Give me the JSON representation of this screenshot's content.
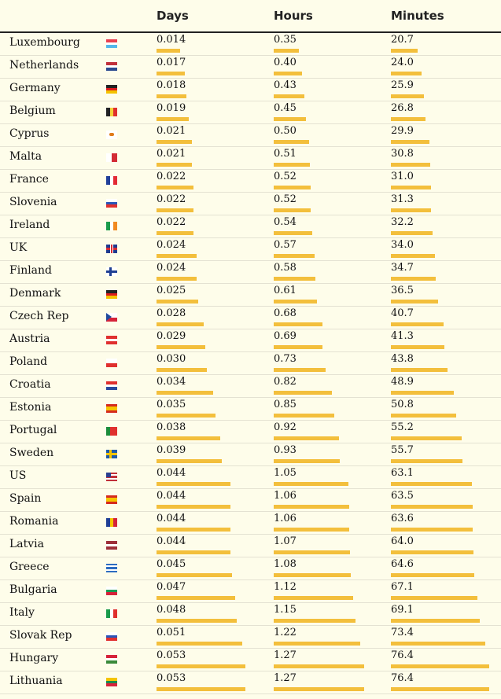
{
  "headers": {
    "days": "Days",
    "hours": "Hours",
    "minutes": "Minutes"
  },
  "colors": {
    "background": "#fefdea",
    "bar": "#f3bf3c",
    "rule": "#222222"
  },
  "chart_data": {
    "type": "table",
    "columns": [
      "Days",
      "Hours",
      "Minutes"
    ],
    "rows": [
      {
        "country": "Luxembourg",
        "flag": "luxembourg-flag",
        "days": "0.014",
        "hours": "0.35",
        "minutes": "20.7"
      },
      {
        "country": "Netherlands",
        "flag": "netherlands-flag",
        "days": "0.017",
        "hours": "0.40",
        "minutes": "24.0"
      },
      {
        "country": "Germany",
        "flag": "germany-flag",
        "days": "0.018",
        "hours": "0.43",
        "minutes": "25.9"
      },
      {
        "country": "Belgium",
        "flag": "belgium-flag",
        "days": "0.019",
        "hours": "0.45",
        "minutes": "26.8"
      },
      {
        "country": "Cyprus",
        "flag": "cyprus-flag",
        "days": "0.021",
        "hours": "0.50",
        "minutes": "29.9"
      },
      {
        "country": "Malta",
        "flag": "malta-flag",
        "days": "0.021",
        "hours": "0.51",
        "minutes": "30.8"
      },
      {
        "country": "France",
        "flag": "france-flag",
        "days": "0.022",
        "hours": "0.52",
        "minutes": "31.0"
      },
      {
        "country": "Slovenia",
        "flag": "slovenia-flag",
        "days": "0.022",
        "hours": "0.52",
        "minutes": "31.3"
      },
      {
        "country": "Ireland",
        "flag": "ireland-flag",
        "days": "0.022",
        "hours": "0.54",
        "minutes": "32.2"
      },
      {
        "country": "UK",
        "flag": "uk-flag",
        "days": "0.024",
        "hours": "0.57",
        "minutes": "34.0"
      },
      {
        "country": "Finland",
        "flag": "finland-flag",
        "days": "0.024",
        "hours": "0.58",
        "minutes": "34.7"
      },
      {
        "country": "Denmark",
        "flag": "germany-flag",
        "days": "0.025",
        "hours": "0.61",
        "minutes": "36.5"
      },
      {
        "country": "Czech Rep",
        "flag": "czech-flag",
        "days": "0.028",
        "hours": "0.68",
        "minutes": "40.7"
      },
      {
        "country": "Austria",
        "flag": "austria-flag",
        "days": "0.029",
        "hours": "0.69",
        "minutes": "41.3"
      },
      {
        "country": "Poland",
        "flag": "poland-flag",
        "days": "0.030",
        "hours": "0.73",
        "minutes": "43.8"
      },
      {
        "country": "Croatia",
        "flag": "croatia-flag",
        "days": "0.034",
        "hours": "0.82",
        "minutes": "48.9"
      },
      {
        "country": "Estonia",
        "flag": "spain-flag",
        "days": "0.035",
        "hours": "0.85",
        "minutes": "50.8"
      },
      {
        "country": "Portugal",
        "flag": "portugal-flag",
        "days": "0.038",
        "hours": "0.92",
        "minutes": "55.2"
      },
      {
        "country": "Sweden",
        "flag": "sweden-flag",
        "days": "0.039",
        "hours": "0.93",
        "minutes": "55.7"
      },
      {
        "country": "US",
        "flag": "us-flag",
        "days": "0.044",
        "hours": "1.05",
        "minutes": "63.1"
      },
      {
        "country": "Spain",
        "flag": "spain-flag",
        "days": "0.044",
        "hours": "1.06",
        "minutes": "63.5"
      },
      {
        "country": "Romania",
        "flag": "romania-flag",
        "days": "0.044",
        "hours": "1.06",
        "minutes": "63.6"
      },
      {
        "country": "Latvia",
        "flag": "latvia-flag",
        "days": "0.044",
        "hours": "1.07",
        "minutes": "64.0"
      },
      {
        "country": "Greece",
        "flag": "greece-flag",
        "days": "0.045",
        "hours": "1.08",
        "minutes": "64.6"
      },
      {
        "country": "Bulgaria",
        "flag": "bulgaria-flag",
        "days": "0.047",
        "hours": "1.12",
        "minutes": "67.1"
      },
      {
        "country": "Italy",
        "flag": "italy-flag",
        "days": "0.048",
        "hours": "1.15",
        "minutes": "69.1"
      },
      {
        "country": "Slovak Rep",
        "flag": "slovakia-flag",
        "days": "0.051",
        "hours": "1.22",
        "minutes": "73.4"
      },
      {
        "country": "Hungary",
        "flag": "hungary-flag",
        "days": "0.053",
        "hours": "1.27",
        "minutes": "76.4"
      },
      {
        "country": "Lithuania",
        "flag": "lithuania-flag",
        "days": "0.053",
        "hours": "1.27",
        "minutes": "76.4"
      }
    ]
  }
}
